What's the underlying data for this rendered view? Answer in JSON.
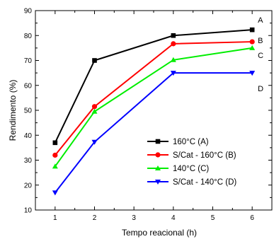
{
  "chart_data": {
    "type": "line",
    "title": "",
    "xlabel": "Tempo reacional (h)",
    "ylabel": "Rendimento (%)",
    "xlim": [
      0.5,
      6.5
    ],
    "ylim": [
      10,
      90
    ],
    "x_ticks": [
      1,
      2,
      3,
      4,
      5,
      6
    ],
    "y_ticks": [
      10,
      20,
      30,
      40,
      50,
      60,
      70,
      80,
      90
    ],
    "grid": false,
    "legend_position": "lower-right",
    "series": [
      {
        "name": "160°C (A)",
        "end_label": "A",
        "color": "#000000",
        "marker": "square",
        "x": [
          1,
          2,
          4,
          6
        ],
        "y": [
          37,
          70,
          80,
          82.3
        ]
      },
      {
        "name": "S/Cat - 160°C (B)",
        "end_label": "B",
        "color": "#ff0000",
        "marker": "circle",
        "x": [
          1,
          2,
          4,
          6
        ],
        "y": [
          32,
          51.5,
          76.7,
          77.5
        ]
      },
      {
        "name": "140°C (C)",
        "end_label": "C",
        "color": "#00ee00",
        "marker": "triangle-up",
        "x": [
          1,
          2,
          4,
          6
        ],
        "y": [
          27.5,
          49.5,
          70.2,
          75
        ]
      },
      {
        "name": "S/Cat - 140°C (D)",
        "end_label": "D",
        "color": "#0000ff",
        "marker": "triangle-down",
        "x": [
          1,
          2,
          4,
          6
        ],
        "y": [
          17,
          37.3,
          65,
          65
        ]
      }
    ]
  }
}
